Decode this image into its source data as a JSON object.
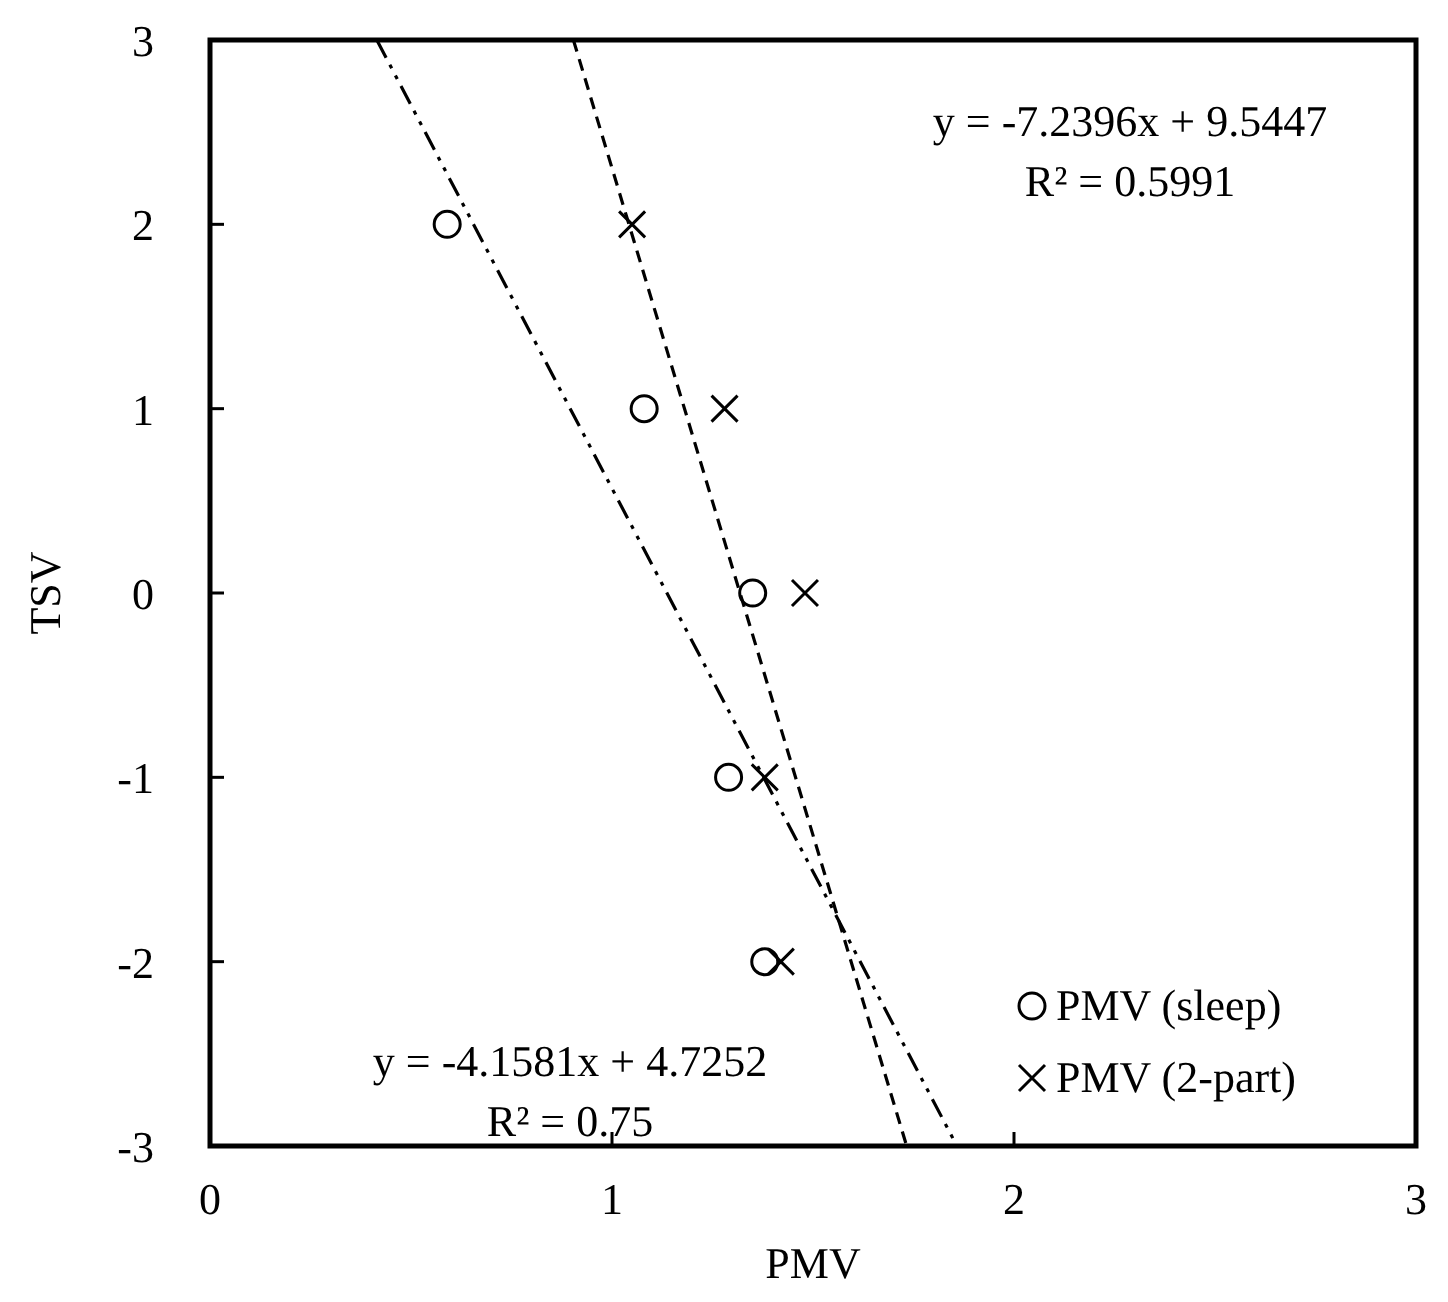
{
  "chart_data": {
    "type": "scatter",
    "xlabel": "PMV",
    "ylabel": "TSV",
    "xlim": [
      0,
      3
    ],
    "ylim": [
      -3,
      3
    ],
    "xticks": [
      0,
      1,
      2,
      3
    ],
    "yticks": [
      -3,
      -2,
      -1,
      0,
      1,
      2,
      3
    ],
    "grid": false,
    "legend": "bottom right",
    "series": [
      {
        "name": "PMV (sleep)",
        "color": "#000000",
        "marker": "circle",
        "x": [
          0.59,
          1.08,
          1.35,
          1.29,
          1.38
        ],
        "values": [
          2,
          1,
          0,
          -1,
          -2
        ]
      },
      {
        "name": "PMV (2-part)",
        "color": "#000000",
        "marker": "cross",
        "x": [
          1.05,
          1.28,
          1.48,
          1.38,
          1.42
        ],
        "values": [
          2,
          1,
          0,
          -1,
          -2
        ]
      },
      {
        "type": "line",
        "color": "#000000",
        "marker": "none",
        "line_style": "dotted",
        "x": [
          0.415,
          1.858
        ],
        "values": [
          3,
          -3
        ]
      },
      {
        "type": "line",
        "color": "#000000",
        "marker": "none",
        "line_style": "dashed",
        "x": [
          0.904,
          1.733
        ],
        "values": [
          3,
          -3
        ]
      }
    ],
    "annotations": [
      "y = -7.2396x + 9.5447\nR² = 0.5991",
      "y = -4.1581x + 4.7252\nR² = 0.75"
    ]
  }
}
